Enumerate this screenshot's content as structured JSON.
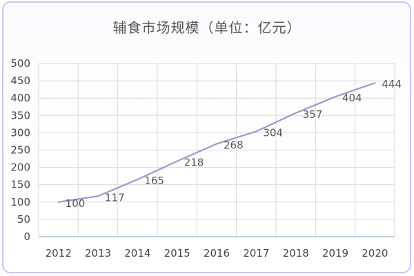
{
  "chart_data": {
    "type": "line",
    "title": "辅食市场规模（单位：亿元）",
    "x": [
      "2012",
      "2013",
      "2014",
      "2015",
      "2016",
      "2017",
      "2018",
      "2019",
      "2020"
    ],
    "series": [
      {
        "values": [
          100,
          117,
          165,
          218,
          268,
          304,
          357,
          404,
          444
        ],
        "color": "#9f95cf"
      }
    ],
    "yticks": [
      0,
      50,
      100,
      150,
      200,
      250,
      300,
      350,
      400,
      450,
      500
    ],
    "ylim": [
      0,
      500
    ],
    "grid": true,
    "legend": "none",
    "colors": {
      "line": "#9f95cf",
      "grid": "#d9d9d9",
      "baseline": "#a9c0d8",
      "frame": "#c5c8ee"
    }
  }
}
